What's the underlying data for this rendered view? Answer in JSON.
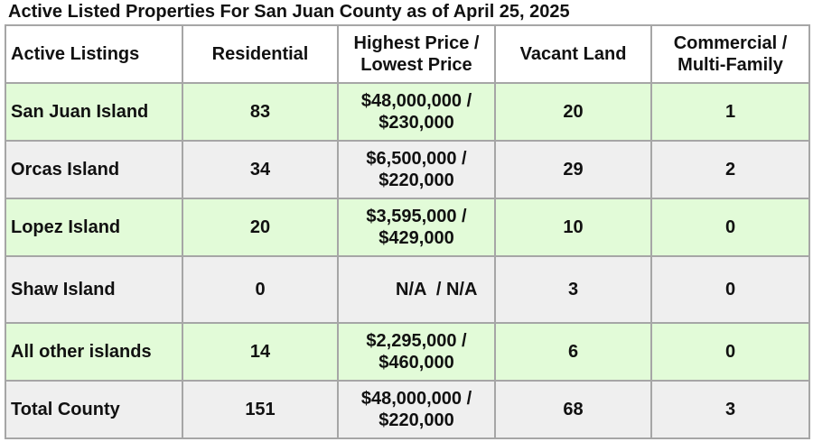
{
  "title": "Active Listed Properties For San Juan County as of April 25, 2025",
  "header": {
    "col1": "Active Listings",
    "col2": "Residential",
    "col3_line1": "Highest Price /",
    "col3_line2": "Lowest Price",
    "col4": "Vacant Land",
    "col5_line1": "Commercial /",
    "col5_line2": "Multi-Family"
  },
  "rows": [
    {
      "name": "San Juan Island",
      "residential": "83",
      "price_high": "$48,000,000 /",
      "price_low": "$230,000",
      "vacant": "20",
      "commercial": "1"
    },
    {
      "name": "Orcas Island",
      "residential": "34",
      "price_high": "$6,500,000 /",
      "price_low": "$220,000",
      "vacant": "29",
      "commercial": "2"
    },
    {
      "name": "Lopez Island",
      "residential": "20",
      "price_high": "$3,595,000 /",
      "price_low": "$429,000",
      "vacant": "10",
      "commercial": "0"
    },
    {
      "name": "Shaw Island",
      "residential": "0",
      "price_high": "N/A  / N/A",
      "price_low": "",
      "vacant": "3",
      "commercial": "0"
    },
    {
      "name": "All other islands",
      "residential": "14",
      "price_high": "$2,295,000 /",
      "price_low": "$460,000",
      "vacant": "6",
      "commercial": "0"
    },
    {
      "name": "Total County",
      "residential": "151",
      "price_high": "$48,000,000 /",
      "price_low": "$220,000",
      "vacant": "68",
      "commercial": "3"
    }
  ],
  "colors": {
    "green_row": "#e2fbd8",
    "gray_row": "#efefef",
    "border": "#a6a6a6"
  }
}
